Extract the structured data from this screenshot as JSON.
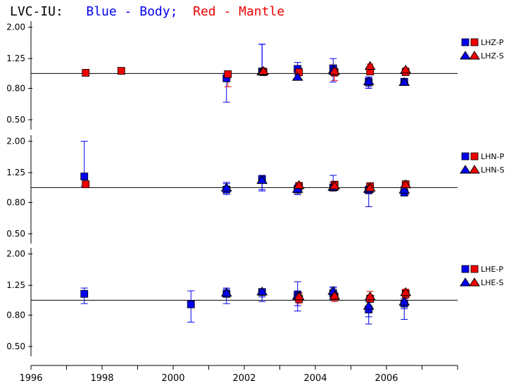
{
  "title": {
    "station": "LVC-IU:",
    "blue_text": "Blue - Body;",
    "red_text": "Red - Mantle"
  },
  "colors": {
    "body": "#0000ee",
    "mantle": "#ee0000",
    "axis": "#000000"
  },
  "chart_data": {
    "type": "scatter",
    "x_axis": {
      "range": [
        1996,
        2008
      ],
      "ticks": [
        "1996",
        "1998",
        "2000",
        "2002",
        "2004",
        "2006"
      ]
    },
    "y_axis": {
      "scale": "log",
      "range": [
        0.45,
        2.1
      ],
      "ticks": [
        "2.00",
        "1.25",
        "0.80",
        "0.50"
      ],
      "reference_line": 1.0
    },
    "panels": [
      {
        "legend": [
          "LHZ-P",
          "LHZ-S"
        ],
        "series": [
          {
            "name": "LHZ-P",
            "marker": "square",
            "color": "body",
            "points": [
              [
                2001.5,
                0.93,
                0.65,
                1.0
              ],
              [
                2002.5,
                1.03,
                0.98,
                1.55
              ],
              [
                2003.5,
                1.07,
                0.98,
                1.18
              ],
              [
                2004.5,
                1.08,
                0.98,
                1.25
              ],
              [
                2005.5,
                0.88,
                0.8,
                0.95
              ],
              [
                2006.5,
                0.88,
                0.84,
                0.93
              ]
            ]
          },
          {
            "name": "LHZ-P",
            "marker": "square",
            "color": "mantle",
            "points": [
              [
                1997.5,
                1.01,
                0.97,
                1.05
              ],
              [
                1998.5,
                1.04,
                1.0,
                1.07
              ],
              [
                2001.5,
                0.99,
                0.82,
                1.02
              ],
              [
                2002.5,
                1.02,
                0.98,
                1.06
              ],
              [
                2003.5,
                1.02,
                0.97,
                1.08
              ],
              [
                2004.5,
                1.02,
                0.9,
                1.06
              ],
              [
                2005.5,
                1.03,
                0.99,
                1.08
              ],
              [
                2006.5,
                1.02,
                0.99,
                1.06
              ]
            ]
          },
          {
            "name": "LHZ-S",
            "marker": "triangle",
            "color": "body",
            "points": [
              [
                2002.5,
                1.03,
                0.98,
                1.55
              ],
              [
                2003.5,
                0.95,
                0.92,
                1.0
              ],
              [
                2004.5,
                1.05,
                0.88,
                1.1
              ],
              [
                2005.5,
                0.89,
                0.82,
                0.94
              ],
              [
                2006.5,
                0.88,
                0.85,
                0.92
              ]
            ]
          },
          {
            "name": "LHZ-S",
            "marker": "triangle",
            "color": "mantle",
            "points": [
              [
                2002.5,
                1.04,
                0.99,
                1.08
              ],
              [
                2004.5,
                1.04,
                0.96,
                1.08
              ],
              [
                2005.5,
                1.12,
                1.08,
                1.15
              ],
              [
                2006.5,
                1.06,
                1.03,
                1.09
              ]
            ]
          }
        ]
      },
      {
        "legend": [
          "LHN-P",
          "LHN-S"
        ],
        "series": [
          {
            "name": "LHN-P",
            "marker": "square",
            "color": "body",
            "points": [
              [
                1997.5,
                1.18,
                1.02,
                2.0
              ],
              [
                2001.5,
                0.97,
                0.9,
                1.08
              ],
              [
                2002.5,
                1.13,
                0.95,
                1.2
              ],
              [
                2003.5,
                0.97,
                0.9,
                1.03
              ],
              [
                2004.5,
                1.0,
                0.95,
                1.2
              ],
              [
                2005.5,
                0.96,
                0.75,
                1.02
              ],
              [
                2006.5,
                0.93,
                0.88,
                1.0
              ]
            ]
          },
          {
            "name": "LHN-P",
            "marker": "square",
            "color": "mantle",
            "points": [
              [
                1997.5,
                1.05,
                1.02,
                1.08
              ],
              [
                2003.5,
                1.02,
                0.97,
                1.07
              ],
              [
                2004.5,
                1.04,
                0.98,
                1.1
              ],
              [
                2005.5,
                1.02,
                0.97,
                1.05
              ],
              [
                2006.5,
                1.05,
                0.9,
                1.1
              ]
            ]
          },
          {
            "name": "LHN-S",
            "marker": "triangle",
            "color": "body",
            "points": [
              [
                2001.5,
                1.0,
                0.92,
                1.06
              ],
              [
                2002.5,
                1.12,
                0.97,
                1.18
              ],
              [
                2003.5,
                0.98,
                0.9,
                1.04
              ],
              [
                2004.5,
                1.01,
                0.96,
                1.08
              ],
              [
                2005.5,
                0.98,
                0.94,
                1.02
              ],
              [
                2006.5,
                0.97,
                0.92,
                1.02
              ]
            ]
          },
          {
            "name": "LHN-S",
            "marker": "triangle",
            "color": "mantle",
            "points": [
              [
                2003.5,
                1.04,
                0.98,
                1.08
              ],
              [
                2004.5,
                1.03,
                0.98,
                1.08
              ],
              [
                2005.5,
                1.0,
                0.96,
                1.04
              ],
              [
                2006.5,
                1.05,
                1.0,
                1.1
              ]
            ]
          }
        ]
      },
      {
        "legend": [
          "LHE-P",
          "LHE-S"
        ],
        "series": [
          {
            "name": "LHE-P",
            "marker": "square",
            "color": "body",
            "points": [
              [
                1997.5,
                1.1,
                0.95,
                1.2
              ],
              [
                2000.5,
                0.94,
                0.72,
                1.15
              ],
              [
                2001.5,
                1.1,
                0.95,
                1.2
              ],
              [
                2002.5,
                1.13,
                0.98,
                1.18
              ],
              [
                2003.5,
                1.08,
                0.92,
                1.32
              ],
              [
                2004.5,
                1.11,
                1.0,
                1.2
              ],
              [
                2005.5,
                0.87,
                0.7,
                0.98
              ],
              [
                2006.5,
                0.95,
                0.75,
                1.02
              ]
            ]
          },
          {
            "name": "LHE-P",
            "marker": "square",
            "color": "mantle",
            "points": [
              [
                2003.5,
                1.02,
                0.95,
                1.1
              ],
              [
                2004.5,
                1.05,
                0.98,
                1.1
              ],
              [
                2005.5,
                1.02,
                0.97,
                1.08
              ],
              [
                2006.5,
                1.1,
                1.03,
                1.18
              ]
            ]
          },
          {
            "name": "LHE-S",
            "marker": "triangle",
            "color": "body",
            "points": [
              [
                2001.5,
                1.12,
                1.05,
                1.18
              ],
              [
                2002.5,
                1.14,
                1.05,
                1.18
              ],
              [
                2003.5,
                1.07,
                0.85,
                1.15
              ],
              [
                2004.5,
                1.15,
                1.05,
                1.22
              ],
              [
                2005.5,
                0.92,
                0.78,
                1.0
              ],
              [
                2006.5,
                0.98,
                0.88,
                1.08
              ]
            ]
          },
          {
            "name": "LHE-S",
            "marker": "triangle",
            "color": "mantle",
            "points": [
              [
                2003.5,
                1.06,
                1.0,
                1.12
              ],
              [
                2004.5,
                1.07,
                1.0,
                1.12
              ],
              [
                2005.5,
                1.06,
                1.0,
                1.14
              ],
              [
                2006.5,
                1.13,
                1.06,
                1.17
              ]
            ]
          }
        ]
      }
    ]
  }
}
